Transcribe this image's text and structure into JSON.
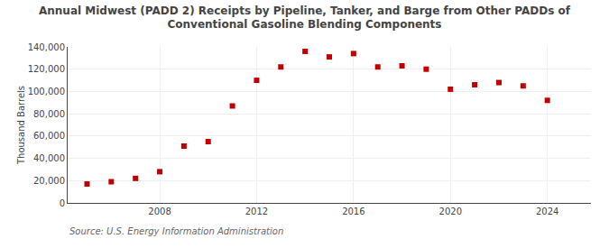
{
  "chart_data": {
    "type": "scatter",
    "title": "Annual Midwest (PADD 2) Receipts by Pipeline, Tanker, and Barge from Other PADDs of\nConventional Gasoline Blending Components",
    "y_label": "Thousand Barrels",
    "annotations": [
      "Source: U.S. Energy Information Administration"
    ],
    "x": [
      2005,
      2006,
      2007,
      2008,
      2009,
      2010,
      2011,
      2012,
      2013,
      2014,
      2015,
      2016,
      2017,
      2018,
      2019,
      2020,
      2021,
      2022,
      2023,
      2024
    ],
    "values": [
      17000,
      19000,
      22000,
      28000,
      51000,
      55000,
      87000,
      110000,
      122000,
      136000,
      131000,
      134000,
      122000,
      123000,
      120000,
      102000,
      106000,
      108000,
      105000,
      92000
    ],
    "color": "#c00000",
    "marker": "square",
    "xlim": [
      2004.2,
      2025.8
    ],
    "xticks": [
      2008,
      2012,
      2016,
      2020,
      2024
    ],
    "ylim": [
      0,
      140000
    ],
    "yticks": [
      0,
      {
        "value": 20000,
        "label": "20,000"
      },
      {
        "value": 40000,
        "label": "40,000"
      },
      {
        "value": 60000,
        "label": "60,000"
      },
      {
        "value": 80000,
        "label": "80,000"
      },
      {
        "value": 100000,
        "label": "100,000"
      },
      {
        "value": 120000,
        "label": "120,000"
      },
      {
        "value": 140000,
        "label": "140,000"
      }
    ],
    "grid": true
  }
}
